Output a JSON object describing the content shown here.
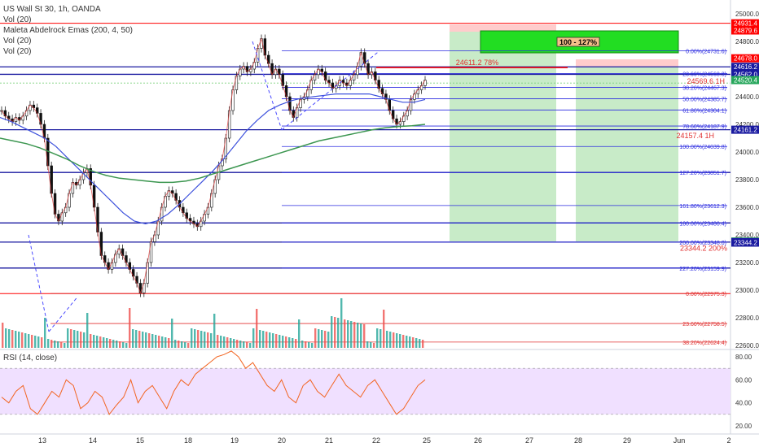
{
  "header": {
    "legend": [
      "US Wall St 30, 1h, OANDA",
      "Vol (20)",
      "Maleta Abdelrock Emas (200, 4, 50)",
      "Vol (20)",
      "Vol (20)"
    ],
    "rsi_label": "RSI (14, close)"
  },
  "colors": {
    "price_line": "#0000ff",
    "red_line": "#ff0000",
    "green_zone": "#c8ebc8",
    "pink_zone": "#ffcccc",
    "ema_blue": "#3c50dc",
    "ema_green": "#3c9650",
    "rsi_line": "#f26522",
    "rsi_band": "#f0e0ff",
    "volume": "#26a69a",
    "volume_down": "#ef5350"
  },
  "chart_data": {
    "type": "candlestick",
    "title": "US Wall St 30, 1h, OANDA",
    "ylim": [
      22600,
      25000
    ],
    "x_ticks": [
      "13",
      "14",
      "15",
      "18",
      "19",
      "20",
      "21",
      "22",
      "25",
      "26",
      "27",
      "28",
      "29",
      "Jun",
      "2"
    ],
    "y_ticks": [
      25000,
      24800,
      24600,
      24400,
      24200,
      24000,
      23800,
      23600,
      23400,
      23200,
      23000,
      22800,
      22600
    ],
    "fib_top": [
      {
        "label": "0.00%(24731.6)",
        "value": 24731.6
      },
      {
        "label": "23.60%(24568.3)",
        "value": 24568.3
      },
      {
        "label": "38.20%(24467.3)",
        "value": 24467.3
      },
      {
        "label": "50.00%(24385.7)",
        "value": 24385.7
      },
      {
        "label": "61.80%(24304.1)",
        "value": 24304.1
      },
      {
        "label": "78.60%(24187.9)",
        "value": 24187.9
      },
      {
        "label": "100.00%(24039.8)",
        "value": 24039.8
      },
      {
        "label": "127.20%(23851.7)",
        "value": 23851.7
      },
      {
        "label": "161.80%(23612.3)",
        "value": 23612.3
      },
      {
        "label": "180.00%(23486.4)",
        "value": 23486.4
      },
      {
        "label": "200.00%(23348.0)",
        "value": 23348.0
      },
      {
        "label": "227.20%(23159.9)",
        "value": 23159.9
      }
    ],
    "fib_bottom": [
      {
        "label": "0.00%(22975.3)",
        "value": 22975.3
      },
      {
        "label": "23.60%(22758.5)",
        "value": 22758.5
      },
      {
        "label": "38.20%(22624.4)",
        "value": 22624.4
      }
    ],
    "annotations": [
      {
        "text": "24611.2 78%",
        "value": 24611.2
      },
      {
        "text": "24569.6 1H",
        "value": 24569.6
      },
      {
        "text": "24157.4 1H",
        "value": 24157.4
      },
      {
        "text": "23344.2 200%",
        "value": 23344.2
      },
      {
        "text": "100 - 127%",
        "value": 24861.0
      }
    ],
    "price_tags": [
      {
        "label": "24931.4",
        "value": 24931.4,
        "bg": "#ff0000"
      },
      {
        "label": "24881.5",
        "value": 24881.5,
        "bg": "#ff0000"
      },
      {
        "label": "24879.6",
        "value": 24879.6,
        "bg": "#ff0000"
      },
      {
        "label": "24678.0",
        "value": 24678.0,
        "bg": "#ff0000"
      },
      {
        "label": "24616.2",
        "value": 24616.2,
        "bg": "#1a1aa0"
      },
      {
        "label": "24562.0",
        "value": 24562.0,
        "bg": "#1a1aa0"
      },
      {
        "label": "24520.4",
        "value": 24520.4,
        "bg": "#26a65b"
      },
      {
        "label": "24161.2",
        "value": 24161.2,
        "bg": "#1a1aa0"
      },
      {
        "label": "23351.9",
        "value": 23351.9,
        "bg": "#26a65b"
      },
      {
        "label": "23348.0",
        "value": 23348.0,
        "bg": "#1a1aa0"
      },
      {
        "label": "23344.2",
        "value": 23344.2,
        "bg": "#1a1aa0"
      }
    ],
    "horizontal_lines": [
      24931.4,
      24616.2,
      24562.0,
      24161.2,
      23851.7,
      23486.4,
      23348.0,
      23159.9,
      22975.3
    ],
    "price_series": [
      24300,
      24260,
      24240,
      24220,
      24250,
      24230,
      24260,
      24300,
      24340,
      24320,
      24280,
      24200,
      24100,
      23900,
      23700,
      23550,
      23500,
      23560,
      23600,
      23700,
      23780,
      23760,
      23800,
      23850,
      23880,
      23760,
      23600,
      23420,
      23250,
      23200,
      23150,
      23200,
      23260,
      23300,
      23250,
      23200,
      23150,
      23100,
      23050,
      22980,
      23050,
      23200,
      23350,
      23400,
      23500,
      23600,
      23680,
      23720,
      23700,
      23650,
      23600,
      23560,
      23520,
      23500,
      23480,
      23460,
      23500,
      23550,
      23600,
      23700,
      23800,
      23900,
      23950,
      24100,
      24300,
      24450,
      24550,
      24600,
      24620,
      24580,
      24600,
      24650,
      24750,
      24820,
      24700,
      24640,
      24560,
      24600,
      24560,
      24480,
      24400,
      24300,
      24250,
      24320,
      24380,
      24400,
      24450,
      24520,
      24560,
      24600,
      24580,
      24520,
      24500,
      24460,
      24480,
      24520,
      24500,
      24480,
      24520,
      24560,
      24620,
      24720,
      24640,
      24560,
      24580,
      24520,
      24460,
      24420,
      24380,
      24300,
      24240,
      24200,
      24220,
      24260,
      24300,
      24380,
      24420,
      24450,
      24480,
      24520
    ],
    "ema_blue_series": [
      24250,
      24220,
      24180,
      24140,
      24100,
      24040,
      23960,
      23880,
      23800,
      23720,
      23640,
      23560,
      23500,
      23480,
      23500,
      23550,
      23620,
      23700,
      23780,
      23860,
      23950,
      24050,
      24150,
      24230,
      24300,
      24340,
      24370,
      24390,
      24400,
      24410,
      24420,
      24420,
      24420,
      24420,
      24400,
      24380,
      24360,
      24360,
      24380
    ],
    "ema_green_series": [
      24100,
      24080,
      24060,
      24030,
      23990,
      23950,
      23900,
      23860,
      23830,
      23810,
      23800,
      23790,
      23780,
      23780,
      23790,
      23810,
      23840,
      23870,
      23900,
      23930,
      23960,
      23990,
      24020,
      24050,
      24080,
      24100,
      24120,
      24140,
      24160,
      24175,
      24185,
      24190,
      24200
    ],
    "rsi_series": [
      45,
      40,
      50,
      55,
      35,
      30,
      40,
      50,
      45,
      60,
      55,
      35,
      40,
      50,
      45,
      30,
      38,
      45,
      60,
      40,
      50,
      55,
      45,
      35,
      50,
      60,
      55,
      65,
      70,
      75,
      80,
      82,
      85,
      80,
      70,
      75,
      65,
      55,
      50,
      60,
      45,
      40,
      55,
      60,
      50,
      45,
      55,
      65,
      55,
      50,
      45,
      55,
      60,
      50,
      40,
      30,
      35,
      45,
      55,
      60
    ],
    "rsi_ylim": [
      20,
      80
    ],
    "rsi_ticks": [
      80,
      60,
      40,
      20
    ],
    "rsi_tick_labels": [
      "80.00",
      "60.00",
      "40.00",
      "20.00"
    ]
  }
}
